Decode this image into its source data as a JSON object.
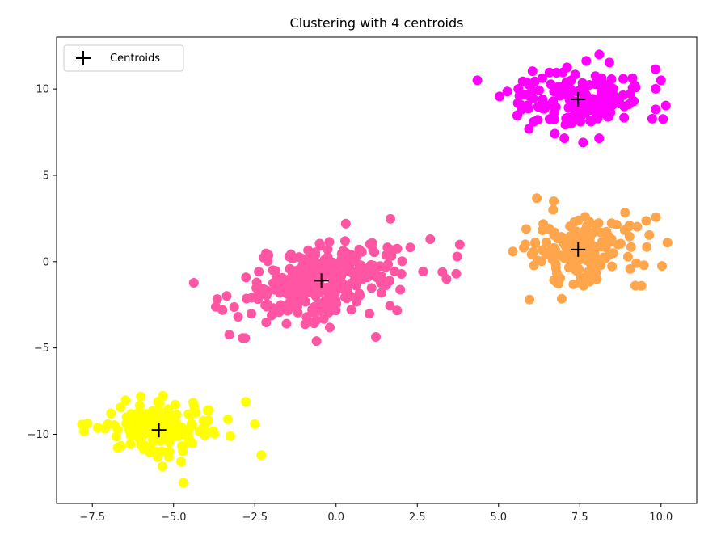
{
  "chart_data": {
    "type": "scatter",
    "title": "Clustering with 4 centroids",
    "xlabel": "",
    "ylabel": "",
    "xlim": [
      -8.6,
      11.1
    ],
    "ylim": [
      -14.0,
      13.0
    ],
    "xticks": [
      -7.5,
      -5.0,
      -2.5,
      0.0,
      2.5,
      5.0,
      7.5,
      10.0
    ],
    "xtick_labels": [
      "−7.5",
      "−5.0",
      "−2.5",
      "0.0",
      "2.5",
      "5.0",
      "7.5",
      "10.0"
    ],
    "yticks": [
      -10,
      -5,
      0,
      5,
      10
    ],
    "ytick_labels": [
      "−10",
      "−5",
      "0",
      "5",
      "10"
    ],
    "grid": false,
    "legend": {
      "position": "top-left",
      "entries": [
        "Centroids"
      ]
    },
    "clusters": [
      {
        "color": "#ffff00",
        "center": [
          -5.45,
          -9.75
        ],
        "spread": [
          0.95,
          0.8
        ],
        "n": 150
      },
      {
        "color": "#ff55a3",
        "center": [
          -0.45,
          -1.1
        ],
        "spread": [
          1.25,
          1.05
        ],
        "n": 300,
        "tilt": 0.35
      },
      {
        "color": "#ffa64d",
        "center": [
          7.45,
          0.7
        ],
        "spread": [
          0.95,
          0.95
        ],
        "n": 160
      },
      {
        "color": "#ff00ff",
        "center": [
          7.45,
          9.4
        ],
        "spread": [
          0.95,
          0.85
        ],
        "n": 160
      }
    ],
    "centroids": {
      "name": "Centroids",
      "marker": "+",
      "color": "#000000",
      "x": [
        -5.45,
        -0.45,
        7.45,
        7.45
      ],
      "y": [
        -9.75,
        -1.1,
        0.7,
        9.4
      ]
    },
    "outlier_points": [
      {
        "x": -4.7,
        "y": -12.8,
        "cluster": 0
      },
      {
        "x": -2.3,
        "y": -11.2,
        "cluster": 0
      },
      {
        "x": -2.5,
        "y": -9.4,
        "cluster": 0
      },
      {
        "x": 3.7,
        "y": -0.7,
        "cluster": 1
      },
      {
        "x": 3.4,
        "y": -1.0,
        "cluster": 1
      },
      {
        "x": 2.9,
        "y": 1.3,
        "cluster": 1
      },
      {
        "x": 0.3,
        "y": 2.2,
        "cluster": 1
      },
      {
        "x": -0.6,
        "y": -4.6,
        "cluster": 1
      },
      {
        "x": 5.95,
        "y": -2.2,
        "cluster": 2
      },
      {
        "x": 9.4,
        "y": -1.4,
        "cluster": 2
      },
      {
        "x": 10.2,
        "y": 1.1,
        "cluster": 2
      },
      {
        "x": 6.7,
        "y": 3.5,
        "cluster": 2
      },
      {
        "x": 4.35,
        "y": 10.5,
        "cluster": 3
      },
      {
        "x": 7.6,
        "y": 6.9,
        "cluster": 3
      },
      {
        "x": 10.0,
        "y": 10.5,
        "cluster": 3
      },
      {
        "x": 8.1,
        "y": 12.0,
        "cluster": 3
      }
    ]
  }
}
